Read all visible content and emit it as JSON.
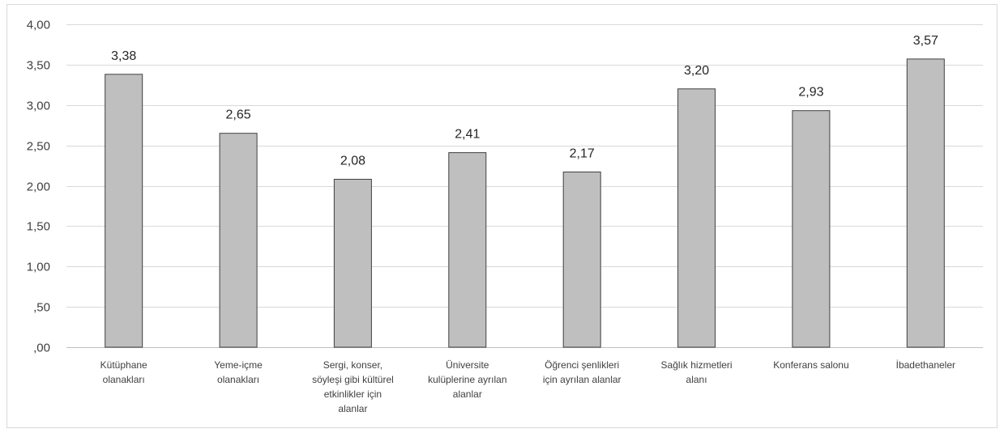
{
  "chart_data": {
    "type": "bar",
    "categories": [
      [
        "Kütüphane",
        "olanakları"
      ],
      [
        "Yeme-içme",
        "olanakları"
      ],
      [
        "Sergi, konser,",
        "söyleşi gibi kültürel",
        "etkinlikler için",
        "alanlar"
      ],
      [
        "Üniversite",
        "kulüplerine ayrılan",
        "alanlar"
      ],
      [
        "Öğrenci şenlikleri",
        "için ayrılan alanlar"
      ],
      [
        "Sağlık hizmetleri",
        "alanı"
      ],
      [
        "Konferans salonu"
      ],
      [
        "İbadethaneler"
      ]
    ],
    "values": [
      3.38,
      2.65,
      2.08,
      2.41,
      2.17,
      3.2,
      2.93,
      3.57
    ],
    "value_labels": [
      "3,38",
      "2,65",
      "2,08",
      "2,41",
      "2,17",
      "3,20",
      "2,93",
      "3,57"
    ],
    "yticks": [
      0,
      0.5,
      1,
      1.5,
      2,
      2.5,
      3,
      3.5,
      4
    ],
    "ytick_labels": [
      ",00",
      ",50",
      "1,00",
      "1,50",
      "2,00",
      "2,50",
      "3,00",
      "3,50",
      "4,00"
    ],
    "ylim": [
      0,
      4
    ],
    "grid": true,
    "legend": "none",
    "colors": {
      "bar_fill": "#bfbfbf",
      "bar_stroke": "#404040",
      "grid": "#d9d9d9"
    }
  }
}
